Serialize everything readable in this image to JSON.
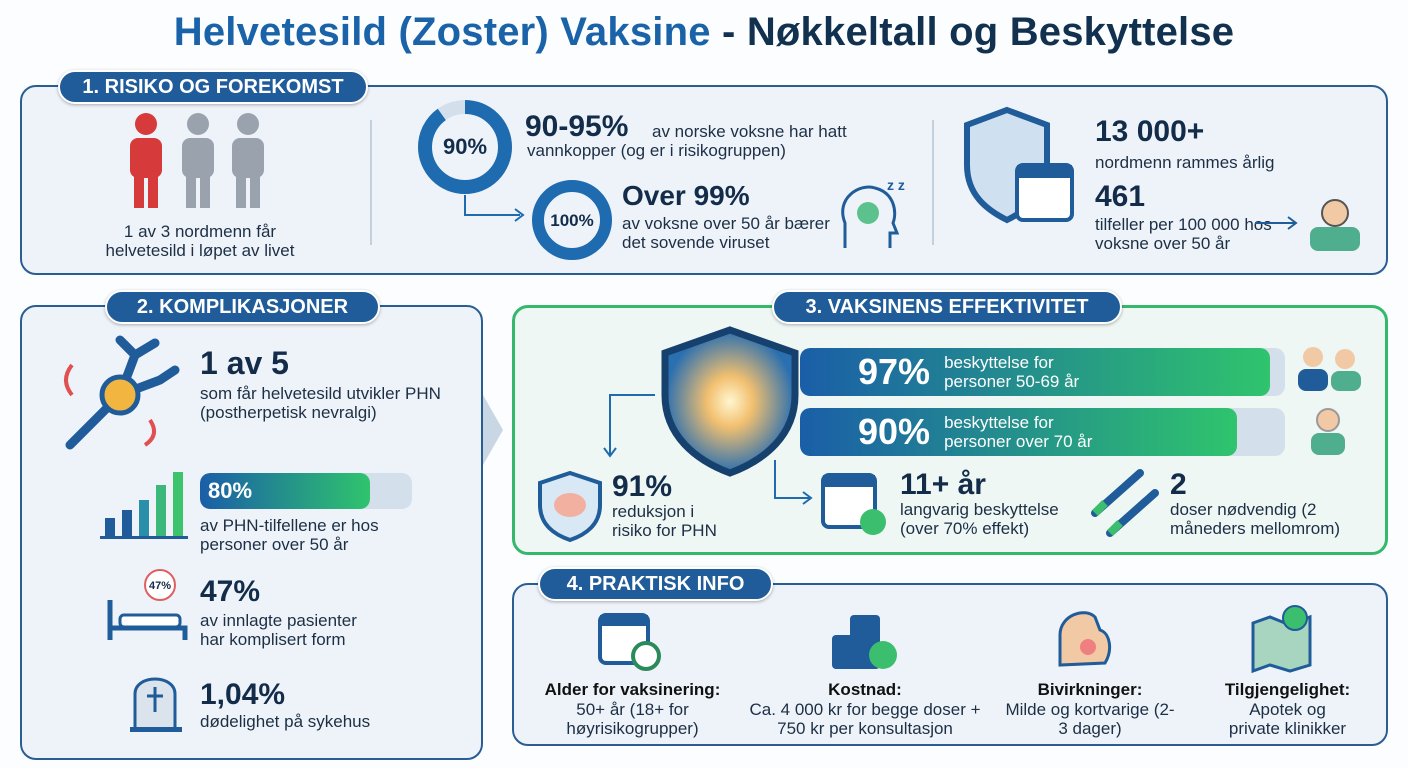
{
  "title": {
    "blue": "Helvetesild (Zoster) Vaksine",
    "dark": "- Nøkkeltall og Beskyttelse"
  },
  "risk": {
    "heading": "1. RISIKO OG FOREKOMST",
    "people_text": "1 av 3 nordmenn får helvetesild i løpet av livet",
    "stats": [
      {
        "donut": {
          "value": 90,
          "label": "90%"
        },
        "headline": "90-95%",
        "text": "av norske voksne har hatt vannkopper (og er i risikogruppen)"
      },
      {
        "donut": {
          "value": 100,
          "label": "100%"
        },
        "headline": "Over 99%",
        "text": "av voksne over 50 år bærer det sovende viruset"
      }
    ],
    "annual": {
      "headline": "13 000+",
      "text": "nordmenn rammes årlig"
    },
    "incidence": {
      "headline": "461",
      "text": "tilfeller per 100 000 hos voksne over 50 år"
    }
  },
  "complications": {
    "heading": "2. KOMPLIKASJONER",
    "items": [
      {
        "headline": "1 av 5",
        "text": "som får helvetesild utvikler PHN (postherpetisk nevralgi)"
      },
      {
        "bar": {
          "value": 80,
          "label": "80%"
        },
        "text": "av PHN-tilfellene er hos personer over 50 år"
      },
      {
        "icon_label": "47%",
        "headline": "47%",
        "text": "av innlagte pasienter har komplisert form"
      },
      {
        "headline": "1,04%",
        "text": "dødelighet på sykehus"
      }
    ]
  },
  "efficacy": {
    "heading": "3. VAKSINENS EFFEKTIVITET",
    "bars": [
      {
        "value": 97,
        "label": "97%",
        "text": "beskyttelse for personer 50-69 år"
      },
      {
        "value": 90,
        "label": "90%",
        "text": "beskyttelse for personer over 70 år"
      }
    ],
    "stats": [
      {
        "headline": "91%",
        "text": "reduksjon i risiko for PHN"
      },
      {
        "headline": "11+ år",
        "text": "langvarig beskyttelse (over 70% effekt)"
      },
      {
        "headline": "2",
        "text": "doser nødvendig (2 måneders mellomrom)"
      }
    ]
  },
  "practical": {
    "heading": "4. PRAKTISK INFO",
    "items": [
      {
        "label": "Alder for vaksinering:",
        "text": "50+ år (18+ for høyrisikogrupper)"
      },
      {
        "label": "Kostnad:",
        "text": "Ca. 4 000 kr for begge doser + 750 kr per konsultasjon"
      },
      {
        "label": "Bivirkninger:",
        "text": "Milde og kortvarige (2-3 dager)"
      },
      {
        "label": "Tilgjengelighet:",
        "text": "Apotek og private klinikker"
      }
    ]
  }
}
